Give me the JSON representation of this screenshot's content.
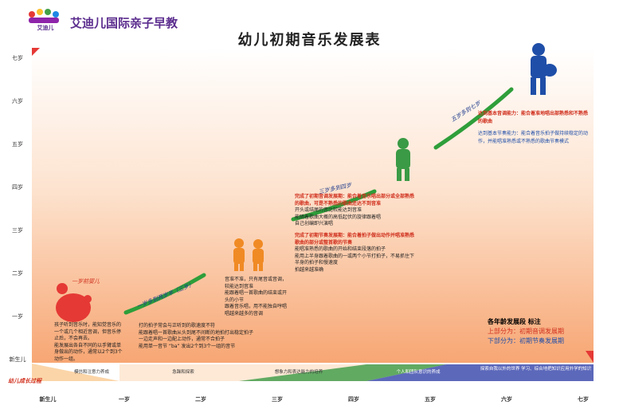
{
  "header": {
    "brand": "艾迪儿国际亲子早教",
    "logo_text": "艾迪儿"
  },
  "title": "幼儿初期音乐发展表",
  "y_axis_labels": [
    "七岁",
    "六岁",
    "五岁",
    "四岁",
    "三岁",
    "二岁",
    "一岁",
    "新生儿"
  ],
  "x_axis_labels": [
    "新生儿",
    "一岁",
    "二岁",
    "三岁",
    "四岁",
    "五岁",
    "六岁",
    "七岁"
  ],
  "stage_tag": "幼儿成长过程",
  "stage_bands": [
    "模仿和注意力养成",
    "急躁和探索",
    "想象力和表达能力的培养",
    "个人和团队意识的养成",
    "探索自我以外的世界 学习、综合地把知识应用外学的知识"
  ],
  "handwritten": [
    "一岁前婴儿",
    "一岁多到两岁半（三岁）",
    "三岁多到四岁",
    "五岁多到七岁"
  ],
  "notes": [
    {
      "lines": [
        "孩子听到音乐时，能知觉音乐的一个或几个相近音调，但音乐停止后，不会再去。",
        "能发展出各自不同的以手臂或单身做出的动作，通常以2个到3个动作一组。"
      ]
    },
    {
      "lines": [
        "打的拍子常会与正听到的歌速度不符",
        "能跟着唱一首歌曲从头到尾不间断的地拍打出稳定拍子",
        "一边走声和一边配上动作，通常不合拍子",
        "能用单一音节 “ba” 发出2个到3个一组的音节"
      ]
    },
    {
      "lines": [
        "音准不准，只有尾音或音调，较能达到音准",
        "能跟着唱一首歌曲的结束或开头的小节",
        "跟着音乐唱，用不能独自哼唱",
        "唱越来越多的音调"
      ]
    },
    {
      "lines": [
        "完成了初期音调发展期：能合着音乐唱出部分或全部熟悉的歌曲，可是不熟悉的歌曲还达不到音准",
        "开头或结尾的音比较能达到音准",
        "能随着歌曲大概的高低起伏的旋律跟着唱",
        "自己创编即兴演唱"
      ]
    },
    {
      "lines": [
        "完成了初期节奏发展期：能合着拍子做出动作并唱准熟悉歌曲的部分或整首歌的节奏",
        "能唱准熟悉的歌曲的开始和结束段落的拍子",
        "能用上半身跟着歌曲的一或两个小节打拍子，不易抓住下半身的拍子和慢速度",
        "拍越来越准确"
      ]
    },
    {
      "lines": [
        "达到基本音调能力：能合着准地唱出部熟悉和不熟悉的歌曲",
        "达到基本节奏能力：能合着音乐拍子做持续稳定的动作，并能唱准熟悉或不熟悉的歌曲节奏模式"
      ]
    }
  ],
  "legend": {
    "title": "各年龄发展段 标注",
    "upper": "上部分为：初期音调发展期",
    "lower": "下部分为：初期节奏发展期"
  }
}
